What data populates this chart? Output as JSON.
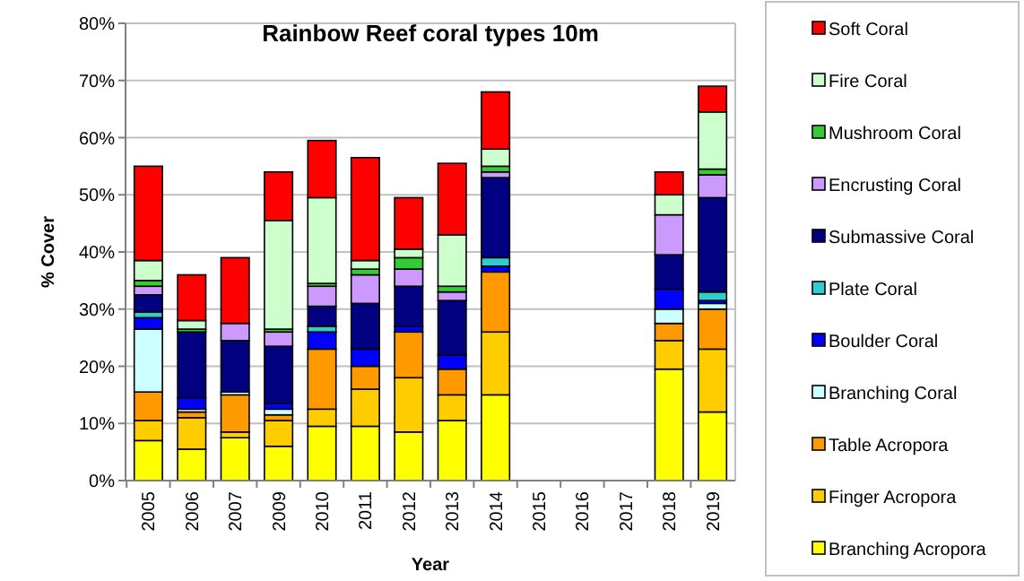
{
  "chart_data": {
    "type": "bar",
    "stacked": true,
    "title": "Rainbow Reef coral types 10m",
    "xlabel": "Year",
    "ylabel": "% Cover",
    "categories": [
      "2005",
      "2006",
      "2007",
      "2009",
      "2010",
      "2011",
      "2012",
      "2013",
      "2014",
      "2015",
      "2016",
      "2017",
      "2018",
      "2019"
    ],
    "ylim": [
      0,
      80
    ],
    "yticks": [
      {
        "value": 0,
        "label": "0%"
      },
      {
        "value": 10,
        "label": "10%"
      },
      {
        "value": 20,
        "label": "20%"
      },
      {
        "value": 30,
        "label": "30%"
      },
      {
        "value": 40,
        "label": "40%"
      },
      {
        "value": 50,
        "label": "50%"
      },
      {
        "value": 60,
        "label": "60%"
      },
      {
        "value": 70,
        "label": "70%"
      },
      {
        "value": 80,
        "label": "80%"
      }
    ],
    "grid": "y",
    "legend": "right",
    "series": [
      {
        "name": "Branching Acropora",
        "color": "#ffff00",
        "values": [
          7,
          5.5,
          7.5,
          6,
          9.5,
          9.5,
          8.5,
          10.5,
          15,
          null,
          null,
          null,
          19.5,
          12
        ]
      },
      {
        "name": "Finger Acropora",
        "color": "#ffcc00",
        "values": [
          3.5,
          5.5,
          1,
          4.5,
          3,
          6.5,
          9.5,
          4.5,
          11,
          null,
          null,
          null,
          5,
          11
        ]
      },
      {
        "name": "Table Acropora",
        "color": "#ff9900",
        "values": [
          5,
          1,
          6.5,
          1,
          10.5,
          4,
          8,
          4.5,
          10.5,
          null,
          null,
          null,
          3,
          7
        ]
      },
      {
        "name": "Branching Coral",
        "color": "#ccffff",
        "values": [
          11,
          0.5,
          0.5,
          1,
          0,
          0,
          0,
          0,
          0,
          null,
          null,
          null,
          2.5,
          1
        ]
      },
      {
        "name": "Boulder Coral",
        "color": "#0000ff",
        "values": [
          2,
          2,
          0,
          1,
          3,
          3,
          1,
          2.5,
          1,
          null,
          null,
          null,
          3.5,
          0.5
        ]
      },
      {
        "name": "Plate Coral",
        "color": "#33cccc",
        "values": [
          1,
          0,
          0,
          0,
          1,
          0,
          0,
          0,
          1.5,
          null,
          null,
          null,
          0,
          1.5
        ]
      },
      {
        "name": "Submassive Coral",
        "color": "#000080",
        "values": [
          3,
          11.5,
          9,
          10,
          3.5,
          8,
          7,
          9.5,
          14,
          null,
          null,
          null,
          6,
          16.5
        ]
      },
      {
        "name": "Encrusting Coral",
        "color": "#cc99ff",
        "values": [
          1.5,
          0,
          3,
          2.5,
          3.5,
          5,
          3,
          1.5,
          1,
          null,
          null,
          null,
          7,
          4
        ]
      },
      {
        "name": "Mushroom Coral",
        "color": "#33cc33",
        "values": [
          1,
          0.5,
          0,
          0.5,
          0.5,
          1,
          2,
          1,
          1,
          null,
          null,
          null,
          0,
          1
        ]
      },
      {
        "name": "Fire Coral",
        "color": "#ccffcc",
        "values": [
          3.5,
          1.5,
          0,
          19,
          15,
          1.5,
          1.5,
          9,
          3,
          null,
          null,
          null,
          3.5,
          10
        ]
      },
      {
        "name": "Soft Coral",
        "color": "#ff0000",
        "values": [
          16.5,
          8,
          11.5,
          8.5,
          10,
          18,
          9,
          12.5,
          10,
          null,
          null,
          null,
          4,
          4.5
        ]
      }
    ]
  }
}
